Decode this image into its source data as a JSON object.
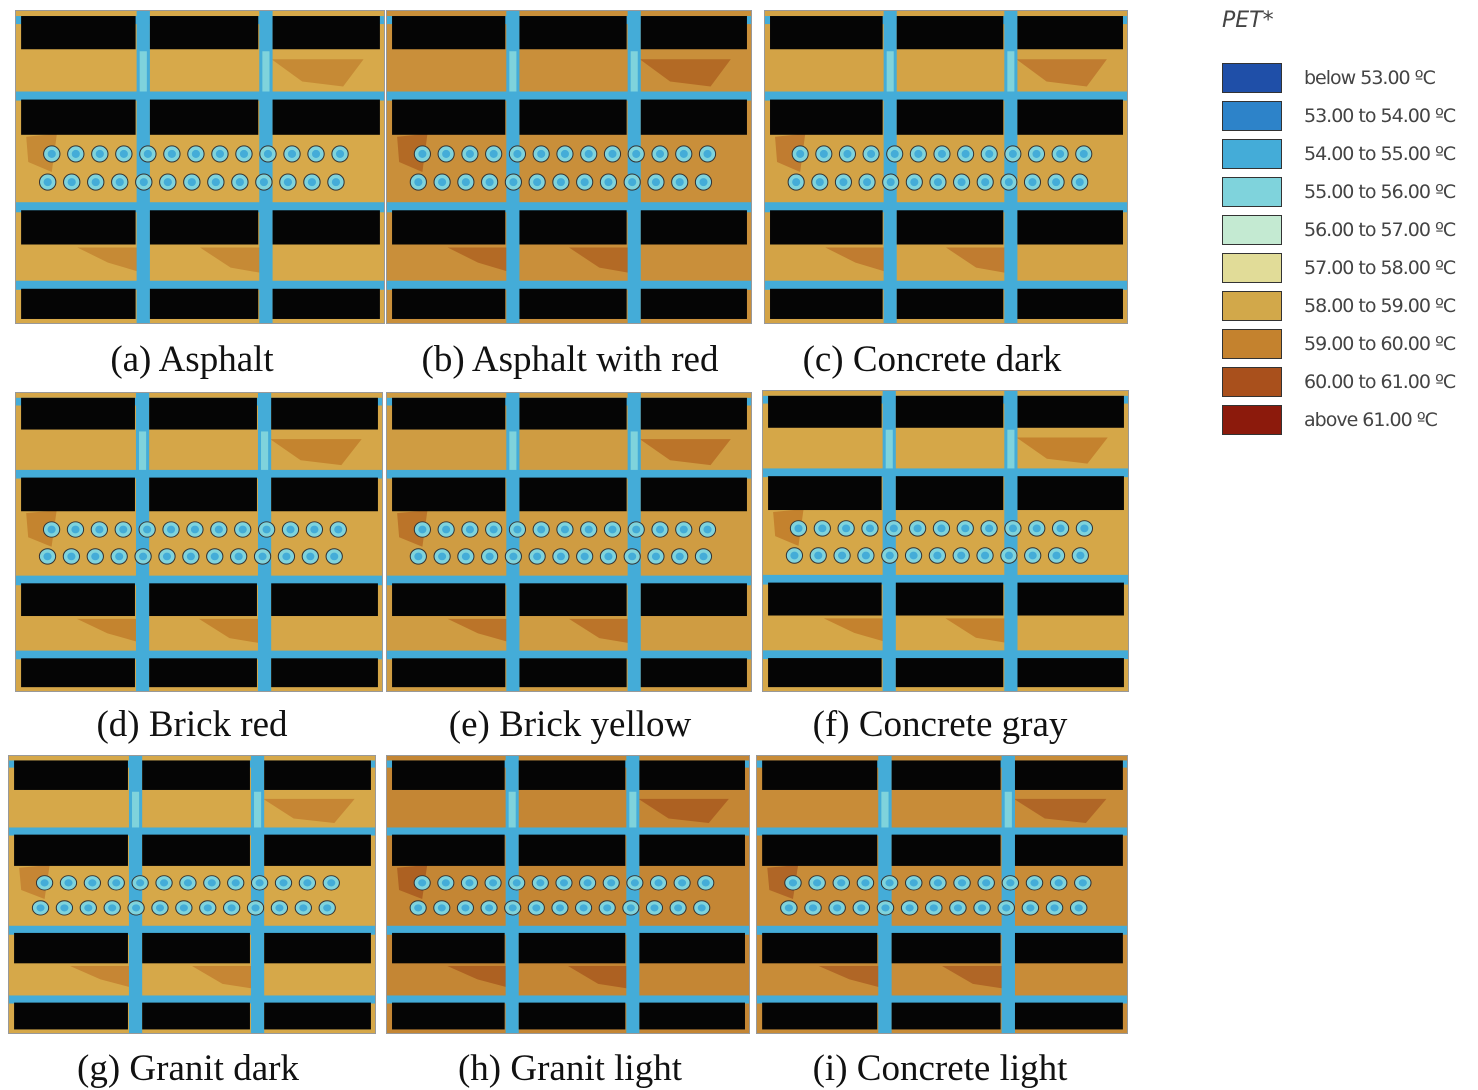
{
  "chart_data": {
    "type": "heatmap",
    "title": "PET*",
    "legend_position": "top-right",
    "legend": [
      {
        "label": "below 53.00 ºC",
        "color": "#1f4fa8"
      },
      {
        "label": "53.00 to 54.00 ºC",
        "color": "#2d83c9"
      },
      {
        "label": "54.00 to 55.00 ºC",
        "color": "#44acd8"
      },
      {
        "label": "55.00 to 56.00 ºC",
        "color": "#7fd3dc"
      },
      {
        "label": "56.00 to 57.00 ºC",
        "color": "#c4ead2"
      },
      {
        "label": "57.00 to 58.00 ºC",
        "color": "#e1dc98"
      },
      {
        "label": "58.00 to 59.00 ºC",
        "color": "#d2a84a"
      },
      {
        "label": "59.00 to 60.00 ºC",
        "color": "#c4822e"
      },
      {
        "label": "60.00 to 61.00 ºC",
        "color": "#a9501c"
      },
      {
        "label": "above 61.00 ºC",
        "color": "#8c1a0c"
      }
    ],
    "panels": [
      {
        "caption": "(a) Asphalt",
        "base": "#d7a94a",
        "hot": "#c68a35"
      },
      {
        "caption": "(b) Asphalt with red",
        "base": "#c98f3a",
        "hot": "#b36a25"
      },
      {
        "caption": "(c) Concrete dark",
        "base": "#d3a346",
        "hot": "#c07c30"
      },
      {
        "caption": "(d) Brick red",
        "base": "#d5a648",
        "hot": "#c4842f"
      },
      {
        "caption": "(e) Brick yellow",
        "base": "#cf9c42",
        "hot": "#bb7429"
      },
      {
        "caption": "(f) Concrete gray",
        "base": "#d5a748",
        "hot": "#c4822e"
      },
      {
        "caption": "(g) Granit dark",
        "base": "#d6a849",
        "hot": "#c68634"
      },
      {
        "caption": "(h) Granit light",
        "base": "#c48634",
        "hot": "#ad6122"
      },
      {
        "caption": "(i) Concrete light",
        "base": "#c88c38",
        "hot": "#b06626"
      }
    ]
  }
}
